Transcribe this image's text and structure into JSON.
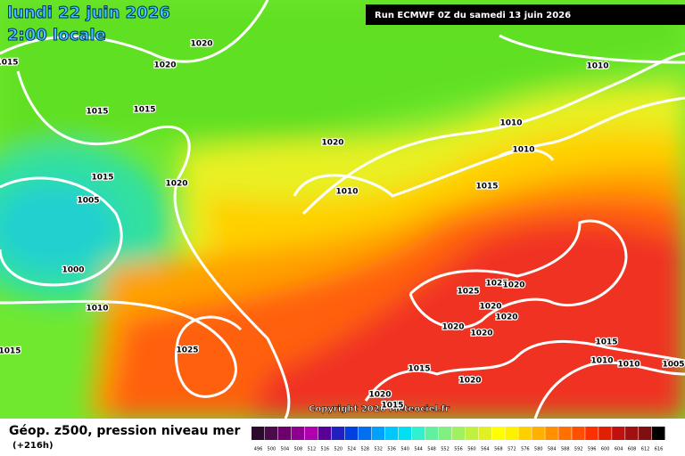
{
  "header": {
    "date": "lundi 22 juin 2026",
    "time": "2:00 locale",
    "run": "Run ECMWF 0Z du samedi 13 juin 2026"
  },
  "isobar_labels": [
    "1020",
    "1020",
    "1015",
    "1015",
    "1015",
    "1020",
    "1020",
    "1015",
    "1005",
    "1000",
    "1010",
    "1015",
    "1025",
    "1010",
    "1015",
    "1010",
    "1010",
    "1010",
    "1025",
    "1025",
    "1020",
    "1020",
    "1020",
    "1020",
    "1020",
    "1015",
    "1020",
    "1020",
    "1015",
    "1015",
    "1010",
    "1010",
    "1005"
  ],
  "footer": {
    "title": "Géop. z500, pression niveau mer",
    "lead": "(+216h)",
    "copyright": "Copyright 2026 Meteociel.fr"
  },
  "colorbar": {
    "labels": [
      496,
      500,
      504,
      508,
      512,
      516,
      520,
      524,
      528,
      532,
      536,
      540,
      544,
      548,
      552,
      556,
      560,
      564,
      568,
      572,
      576,
      580,
      584,
      588,
      592,
      596,
      600,
      604,
      608,
      612,
      616
    ]
  }
}
